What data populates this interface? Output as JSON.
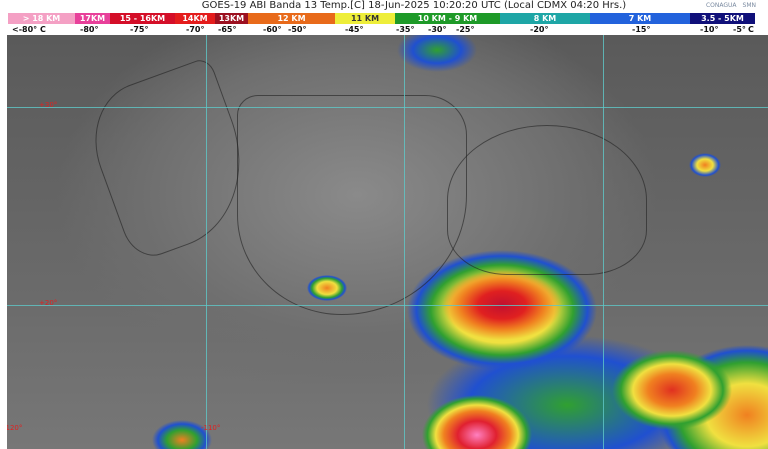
{
  "header": {
    "title": "GOES-19 ABI Banda 13 Temp.[C] 18-Jun-2025 10:20:20 UTC (Local CDMX  04:20 Hrs.)",
    "logos": [
      "CONAGUA",
      "SMN"
    ]
  },
  "legend": {
    "heights": [
      {
        "label": "> 18 KM",
        "color": "#f4a0c4"
      },
      {
        "label": "17KM",
        "color": "#e8409a"
      },
      {
        "label": "15 - 16KM",
        "color": "#d40e28"
      },
      {
        "label": "14KM",
        "color": "#e41c1c"
      },
      {
        "label": "13KM",
        "color": "#9c1020"
      },
      {
        "label": "12 KM",
        "color": "#e86a1a"
      },
      {
        "label": "11 KM",
        "color": "#eeee3a"
      },
      {
        "label": "10 KM - 9 KM",
        "color": "#1e9a28"
      },
      {
        "label": "8 KM",
        "color": "#1ea6a6"
      },
      {
        "label": "7 KM",
        "color": "#2262dc"
      },
      {
        "label": "3.5 - 5KM",
        "color": "#10107a"
      }
    ],
    "temps": [
      "<-80° C",
      "-80°",
      "-75°",
      "-70°",
      "-65°",
      "-60°",
      "-50°",
      "-45°",
      "-35°",
      "-30°",
      "-25°",
      "-20°",
      "-15°",
      "-10°",
      "-5°",
      "C"
    ]
  },
  "map": {
    "lat_labels": [
      "+30°",
      "+20°"
    ],
    "lon_labels": [
      "-120°",
      "-110°"
    ]
  }
}
